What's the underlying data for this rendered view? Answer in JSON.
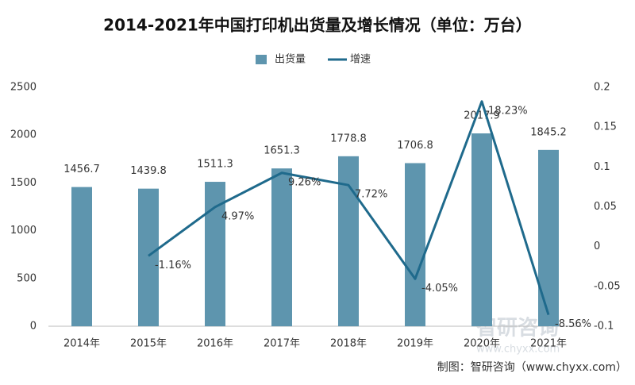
{
  "chart_data": {
    "type": "bar",
    "title": "2014-2021年中国打印机出货量及增长情况（单位：万台）",
    "categories": [
      "2014年",
      "2015年",
      "2016年",
      "2017年",
      "2018年",
      "2019年",
      "2020年",
      "2021年"
    ],
    "series": [
      {
        "name": "出货量",
        "type": "bar",
        "color": "#5e95ae",
        "values": [
          1456.7,
          1439.8,
          1511.3,
          1651.3,
          1778.8,
          1706.8,
          2017.9,
          1845.2
        ]
      },
      {
        "name": "增速",
        "type": "line",
        "axis": "y2",
        "color": "#1f6a8c",
        "values": [
          null,
          -0.0116,
          0.0497,
          0.0926,
          0.0772,
          -0.0405,
          0.1823,
          -0.0856
        ],
        "value_labels": [
          null,
          "-1.16%",
          "4.97%",
          "9.26%",
          "7.72%",
          "-4.05%",
          "18.23%",
          "-8.56%"
        ]
      }
    ],
    "ylim": [
      0,
      2500
    ],
    "yticks": [
      0,
      500,
      1000,
      1500,
      2000,
      2500
    ],
    "y2lim": [
      -0.1,
      0.2
    ],
    "y2ticks": [
      -0.1,
      -0.05,
      0,
      0.05,
      0.1,
      0.15,
      0.2
    ],
    "grid": false,
    "legend": "top",
    "watermark": [
      "智研咨询",
      "www.chyxx.com"
    ],
    "source": "制图：智研咨询（www.chyxx.com）"
  }
}
